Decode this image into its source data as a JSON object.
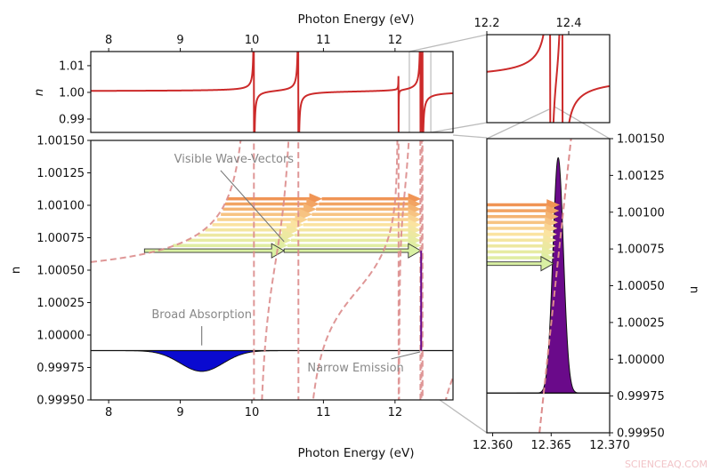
{
  "dispersion": {
    "offset": 0.00035,
    "resonances": [
      {
        "E": 10.03,
        "f": 0.003
      },
      {
        "E": 10.65,
        "f": 0.0038
      },
      {
        "E": 12.05,
        "f": 0.00025
      },
      {
        "E": 12.355,
        "f": 0.003
      },
      {
        "E": 12.385,
        "f": 0.003
      }
    ],
    "line_color": "#cc2a2a",
    "dashed_color": "#dc8c8c"
  },
  "chart_data": [
    {
      "panel": "top",
      "type": "line",
      "xlabel": "Photon Energy (eV)",
      "ylabel": "n",
      "xlim": [
        7.75,
        12.81
      ],
      "ylim": [
        0.985,
        1.0153
      ],
      "xticks": [
        8,
        9,
        10,
        11,
        12
      ],
      "xtick_labels": [
        "8",
        "9",
        "10",
        "11",
        "12"
      ],
      "yticks": [
        0.99,
        1.0,
        1.01
      ],
      "ytick_labels": [
        "0.99",
        "1.00",
        "1.01"
      ],
      "zoom_region": [
        12.2,
        12.5
      ]
    },
    {
      "panel": "top-inset",
      "type": "line",
      "xlim": [
        12.2,
        12.5
      ],
      "ylim": [
        0.99,
        1.01
      ],
      "xticks": [
        12.2,
        12.4
      ],
      "xtick_labels": [
        "12.2",
        "12.4"
      ]
    },
    {
      "panel": "main",
      "type": "line",
      "xlabel": "Photon Energy (eV)",
      "ylabel": "n",
      "xlim": [
        7.75,
        12.81
      ],
      "ylim": [
        0.9995,
        1.0015
      ],
      "xticks": [
        8,
        9,
        10,
        11,
        12
      ],
      "xtick_labels": [
        "8",
        "9",
        "10",
        "11",
        "12"
      ],
      "yticks": [
        0.9995,
        0.99975,
        1.0,
        1.00025,
        1.0005,
        1.00075,
        1.001,
        1.00125,
        1.0015
      ],
      "ytick_labels": [
        "0.99950",
        "0.99975",
        "1.00000",
        "1.00025",
        "1.00050",
        "1.00075",
        "1.00100",
        "1.00125",
        "1.00150"
      ],
      "baseline": 0.99988,
      "absorption": {
        "center": 9.3,
        "minimum": 0.99972,
        "sigma": 0.3,
        "color": "#0a0ad0"
      },
      "emission": {
        "center": 12.365,
        "top": 1.00065,
        "color": "#6a0a8a"
      },
      "wave_vectors": [
        {
          "n": 1.00065,
          "start": 8.5,
          "mid": 10.45,
          "end": 12.36
        },
        {
          "n": 1.00069,
          "start": 8.9,
          "mid": 10.5,
          "end": 12.36
        },
        {
          "n": 1.00073,
          "start": 9.1,
          "mid": 10.55,
          "end": 12.36
        },
        {
          "n": 1.00077,
          "start": 9.25,
          "mid": 10.6,
          "end": 12.36
        },
        {
          "n": 1.00081,
          "start": 9.35,
          "mid": 10.66,
          "end": 12.36
        },
        {
          "n": 1.00085,
          "start": 9.45,
          "mid": 10.72,
          "end": 12.36
        },
        {
          "n": 1.00089,
          "start": 9.52,
          "mid": 10.78,
          "end": 12.36
        },
        {
          "n": 1.00093,
          "start": 9.57,
          "mid": 10.84,
          "end": 12.36
        },
        {
          "n": 1.00097,
          "start": 9.6,
          "mid": 10.9,
          "end": 12.36
        },
        {
          "n": 1.00101,
          "start": 9.63,
          "mid": 10.94,
          "end": 12.36
        },
        {
          "n": 1.00105,
          "start": 9.66,
          "mid": 10.98,
          "end": 12.36
        }
      ],
      "arrow_colors": [
        "#d9f0a3",
        "#fbe3a0",
        "#f09454"
      ],
      "annotations": [
        {
          "text": "Visible Wave-Vectors",
          "x": 9.75,
          "y": 1.00133,
          "to_x": 10.45,
          "to_y": 1.00072
        },
        {
          "text": "Broad Absorption",
          "x": 9.3,
          "y": 1.00013,
          "to_x": 9.3,
          "to_y": 0.99992
        },
        {
          "text": "Narrow Emission",
          "x": 11.45,
          "y": 0.99972,
          "to_x": 12.35,
          "to_y": 0.99987
        }
      ]
    },
    {
      "panel": "emission-zoom",
      "type": "area",
      "ylabel": "n",
      "xlim": [
        12.3595,
        12.37
      ],
      "ylim": [
        0.9995,
        1.0015
      ],
      "xticks": [
        12.36,
        12.365,
        12.37
      ],
      "xtick_labels": [
        "12.360",
        "12.365",
        "12.370"
      ],
      "yticks": [
        0.9995,
        0.99975,
        1.0,
        1.00025,
        1.0005,
        1.00075,
        1.001,
        1.00125,
        1.0015
      ],
      "ytick_labels": [
        "0.99950",
        "0.99975",
        "1.00000",
        "1.00025",
        "1.00050",
        "1.00075",
        "1.00100",
        "1.00125",
        "1.00150"
      ],
      "baseline": 0.99977,
      "emission": {
        "center": 12.3656,
        "peak": 1.00137,
        "sigma": 0.00045,
        "color": "#6a0a8a"
      },
      "dashed_line": [
        [
          12.364,
          0.9995
        ],
        [
          12.3667,
          1.0015
        ]
      ],
      "wave_vector_ends": [
        12.3652,
        12.3657
      ]
    }
  ],
  "watermark": "SCIENCEAQ.COM"
}
